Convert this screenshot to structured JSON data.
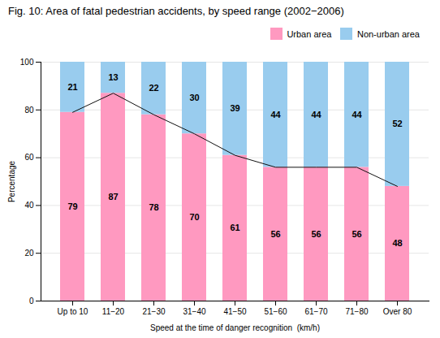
{
  "chart_data": {
    "type": "bar",
    "stacked": true,
    "title": "Fig. 10: Area of fatal pedestrian accidents, by speed range  (2002−2006)",
    "xlabel": "Speed at the time of danger recognition  (km/h)",
    "ylabel": "Percentage",
    "categories": [
      "Up to 10",
      "11−20",
      "21−30",
      "31−40",
      "41−50",
      "51−60",
      "61−70",
      "71−80",
      "Over 80"
    ],
    "series": [
      {
        "name": "Urban area",
        "color": "#FF99C0",
        "values": [
          79,
          87,
          78,
          70,
          61,
          56,
          56,
          56,
          48
        ]
      },
      {
        "name": "Non-urban area",
        "color": "#99CCEE",
        "values": [
          21,
          13,
          22,
          30,
          39,
          44,
          44,
          44,
          52
        ]
      }
    ],
    "ylim": [
      0,
      100
    ],
    "yticks": [
      0,
      20,
      40,
      60,
      80,
      100
    ],
    "grid": true,
    "legend": "upper-right",
    "data_labels": true
  }
}
